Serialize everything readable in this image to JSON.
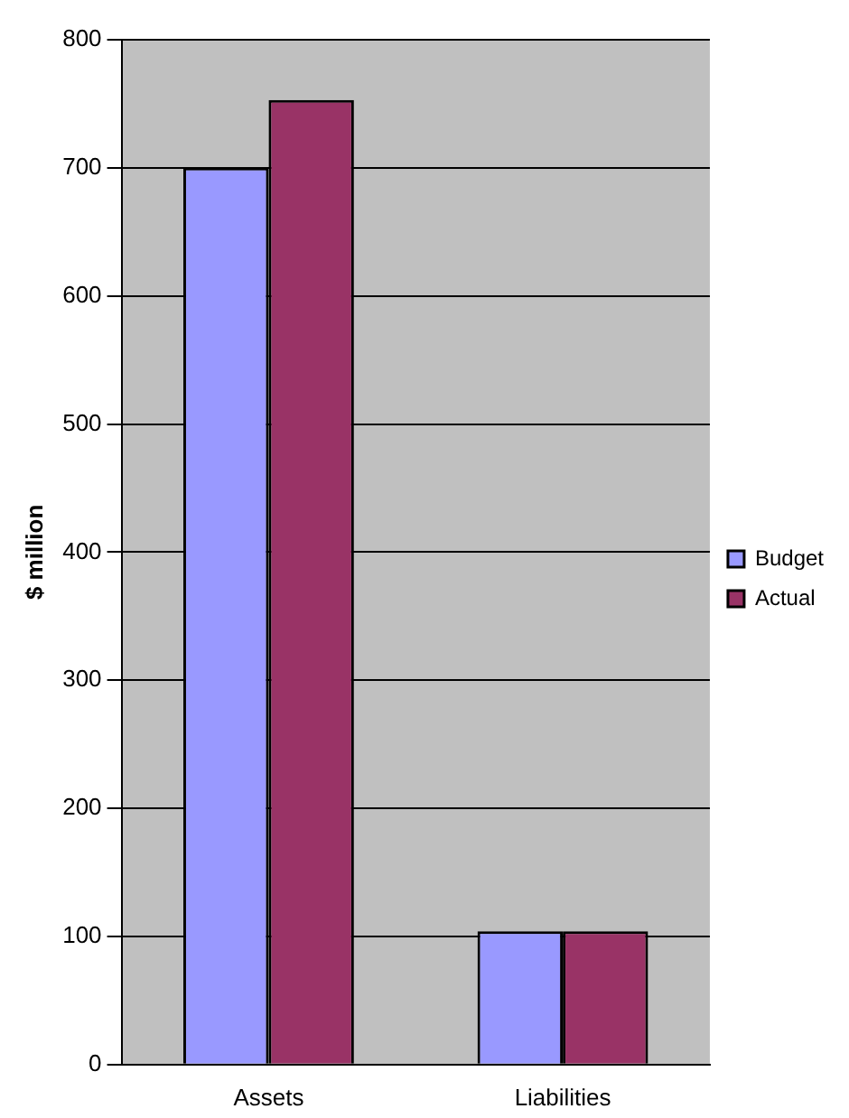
{
  "chart_data": {
    "type": "bar",
    "ylabel": "$ million",
    "categories": [
      "Assets",
      "Liabilities"
    ],
    "series": [
      {
        "name": "Budget",
        "color": "#9999ff",
        "values": [
          700,
          104
        ]
      },
      {
        "name": "Actual",
        "color": "#993366",
        "values": [
          753,
          104
        ]
      }
    ],
    "ylim": [
      0,
      800
    ],
    "yticks": [
      0,
      100,
      200,
      300,
      400,
      500,
      600,
      700,
      800
    ],
    "grid": "y",
    "legend": "right"
  }
}
